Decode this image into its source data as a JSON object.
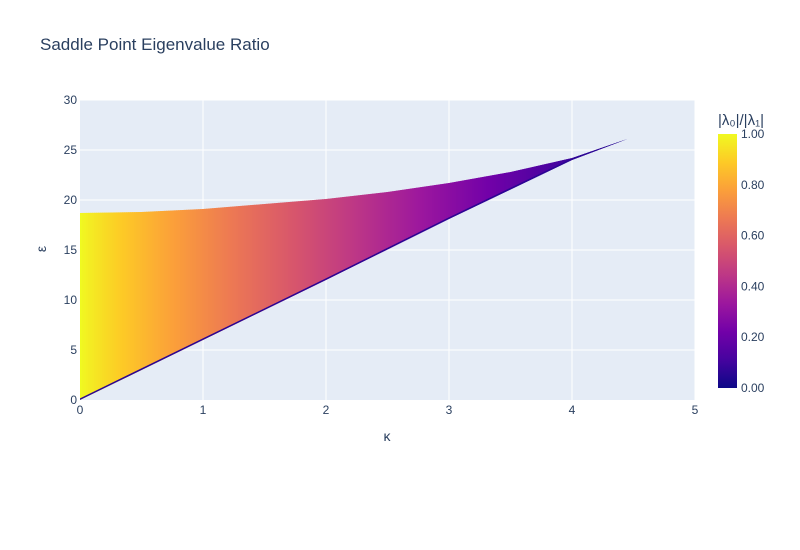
{
  "chart_data": {
    "type": "heatmap",
    "title": "Saddle Point Eigenvalue Ratio",
    "xlabel": "κ",
    "ylabel": "ε",
    "xlim": [
      0,
      5
    ],
    "ylim": [
      0,
      30
    ],
    "x_ticks": [
      "0",
      "1",
      "2",
      "3",
      "4",
      "5"
    ],
    "y_ticks": [
      "0",
      "5",
      "10",
      "15",
      "20",
      "25",
      "30"
    ],
    "grid": true,
    "colorbar": {
      "title": "|λ₀|/|λ₁|",
      "range": [
        0,
        1
      ],
      "ticks": [
        "0.00",
        "0.20",
        "0.40",
        "0.60",
        "0.80",
        "1.00"
      ],
      "colorscale": "plasma"
    },
    "region": {
      "upper_boundary": [
        [
          0,
          18.7
        ],
        [
          0.5,
          18.8
        ],
        [
          1,
          19.1
        ],
        [
          1.5,
          19.6
        ],
        [
          2,
          20.1
        ],
        [
          2.5,
          20.8
        ],
        [
          3,
          21.7
        ],
        [
          3.5,
          22.8
        ],
        [
          4,
          24.2
        ],
        [
          4.45,
          26.1
        ]
      ],
      "lower_boundary": [
        [
          0,
          0
        ],
        [
          1,
          6.0
        ],
        [
          2,
          12.0
        ],
        [
          3,
          18.1
        ],
        [
          4,
          24.0
        ],
        [
          4.45,
          26.1
        ]
      ],
      "value_left_edge": 1.0,
      "value_right_tip": 0.0
    },
    "colors": {
      "plot_bg": "#e5ecf6",
      "grid": "#ffffff",
      "text": "#2a3f5f"
    }
  }
}
